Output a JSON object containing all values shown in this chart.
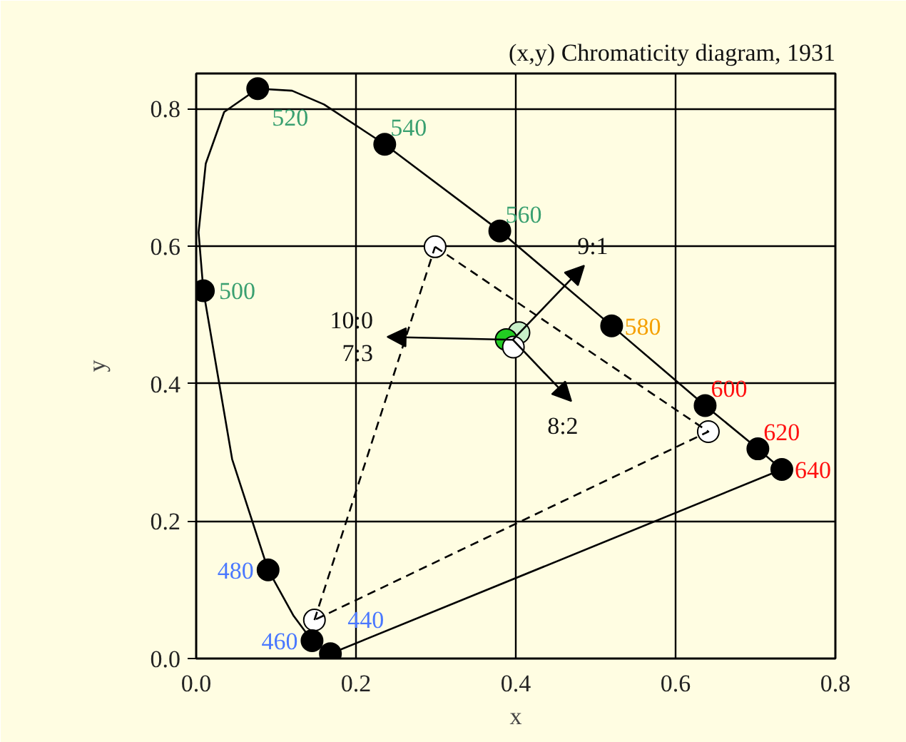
{
  "chart_data": {
    "type": "line",
    "title": "(x,y) Chromaticity diagram, 1931",
    "xlabel": "x",
    "ylabel": "y",
    "xlim": [
      0,
      0.8
    ],
    "ylim": [
      0,
      0.851
    ],
    "xticks": [
      {
        "value": 0,
        "label": "0.0"
      },
      0.2,
      0.4,
      0.6,
      0.8
    ],
    "yticks": [
      {
        "value": 0,
        "label": "0.0"
      },
      0.2,
      0.4,
      0.6,
      0.8
    ],
    "grid": true,
    "series": [
      {
        "line_style": "solid",
        "color": "#000000",
        "x": [
          0.168,
          0.145,
          0.122,
          0.09,
          0.045,
          0.009,
          0.003,
          0.012,
          0.035,
          0.077,
          0.12,
          0.16,
          0.236,
          0.38,
          0.52,
          0.637,
          0.703,
          0.733
        ],
        "values": [
          0.007,
          0.026,
          0.062,
          0.129,
          0.29,
          0.535,
          0.62,
          0.72,
          0.795,
          0.829,
          0.826,
          0.806,
          0.748,
          0.622,
          0.484,
          0.368,
          0.305,
          0.275
        ]
      },
      {
        "line_style": "solid",
        "color": "#000000",
        "x": [
          0.168,
          0.733
        ],
        "values": [
          0.007,
          0.275
        ]
      },
      {
        "line_style": "dashed",
        "color": "#000000",
        "x": [
          0.299,
          0.641,
          0.148
        ],
        "values": [
          0.599,
          0.33,
          0.056
        ]
      },
      {
        "line_style": "dashed",
        "color": "#000000",
        "x": [
          0.148,
          0.299
        ],
        "values": [
          0.056,
          0.599
        ]
      },
      {
        "type": "scatter",
        "marker": "circle",
        "color": "#ffffff",
        "x": [
          0.299,
          0.641,
          0.148
        ],
        "values": [
          0.599,
          0.33,
          0.056
        ]
      },
      {
        "type": "scatter",
        "marker": "circle",
        "color": "#000000",
        "x": [
          0.009,
          0.077,
          0.236,
          0.38
        ],
        "values": [
          0.535,
          0.829,
          0.748,
          0.622
        ]
      },
      {
        "type": "scatter",
        "marker": "circle",
        "color": "#000000",
        "x": [
          0.52
        ],
        "values": [
          0.484
        ]
      },
      {
        "type": "scatter",
        "marker": "circle",
        "color": "#000000",
        "x": [
          0.637,
          0.703,
          0.733
        ],
        "values": [
          0.368,
          0.305,
          0.275
        ]
      },
      {
        "type": "scatter",
        "marker": "circle",
        "color": "#000000",
        "x": [
          0.09,
          0.145,
          0.168
        ],
        "values": [
          0.129,
          0.026,
          0.007
        ]
      },
      {
        "type": "scatter",
        "marker": "circle",
        "colors": [
          "#c8f0c8",
          "#22cc22",
          "#ffffff"
        ],
        "x": [
          0.404,
          0.388,
          0.397
        ],
        "values": [
          0.474,
          0.464,
          0.453
        ]
      }
    ],
    "annotations": [
      {
        "text": "500",
        "x": 0.009,
        "y": 0.535
      },
      {
        "text": "520",
        "x": 0.077,
        "y": 0.829
      },
      {
        "text": "540",
        "x": 0.236,
        "y": 0.748
      },
      {
        "text": "560",
        "x": 0.38,
        "y": 0.622
      },
      {
        "text": "580",
        "x": 0.52,
        "y": 0.484
      },
      {
        "text": "600",
        "x": 0.637,
        "y": 0.368
      },
      {
        "text": "620",
        "x": 0.703,
        "y": 0.305
      },
      {
        "text": "640",
        "x": 0.733,
        "y": 0.275
      },
      {
        "text": "480",
        "x": 0.09,
        "y": 0.129
      },
      {
        "text": "460",
        "x": 0.145,
        "y": 0.026
      },
      {
        "text": "440",
        "x": 0.168,
        "y": 0.007
      },
      "10:0\n7:3",
      "9:1",
      "8:2"
    ]
  }
}
